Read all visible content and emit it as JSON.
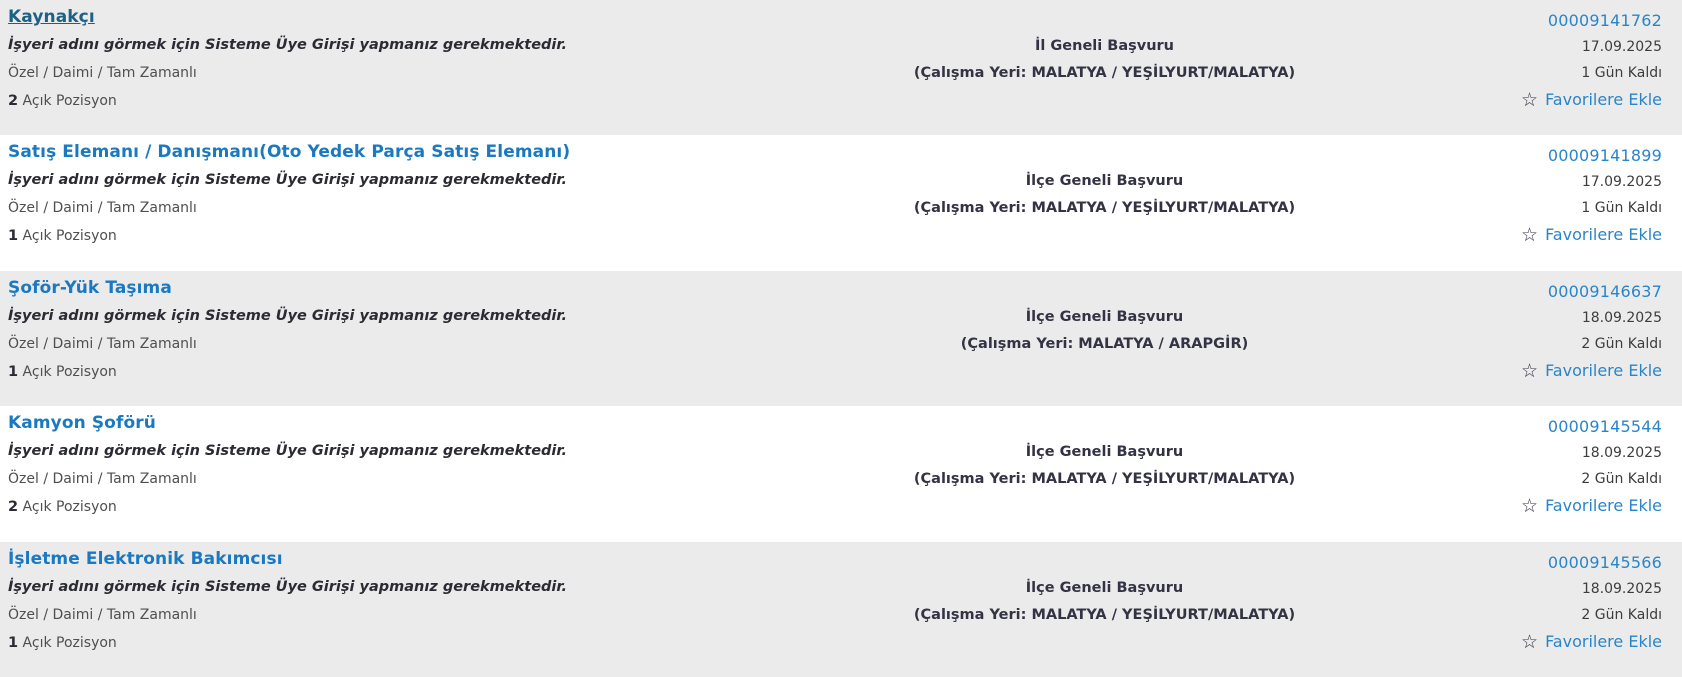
{
  "colors": {
    "row_alt_bg": "#ebebeb",
    "row_bg": "#ffffff",
    "link_blue": "#1b79c0",
    "visited_blue": "#1d6286",
    "id_blue": "#2a85c8",
    "dark_navy": "#2b2b34",
    "center_text": "#333344",
    "muted_text": "#4f4f4f",
    "date_text": "#3d3d3d",
    "star_color": "#333348"
  },
  "labels": {
    "login_notice": "İşyeri adını görmek için Sisteme Üye Girişi yapmanız gerekmektedir.",
    "job_type": "Özel / Daimi / Tam Zamanlı",
    "open_position_suffix": "Açık Pozisyon",
    "favorite_label": "Favorilere Ekle",
    "star_icon": "☆"
  },
  "jobs": [
    {
      "title": "Kaynakçı",
      "visited": true,
      "open_positions": "2",
      "application_scope": "İl Geneli Başvuru",
      "work_location": "(Çalışma Yeri: MALATYA / YEŞİLYURT/MALATYA)",
      "id": "00009141762",
      "date": "17.09.2025",
      "days_left": "1 Gün Kaldı"
    },
    {
      "title": "Satış Elemanı / Danışmanı(Oto Yedek Parça Satış Elemanı)",
      "visited": false,
      "open_positions": "1",
      "application_scope": "İlçe Geneli Başvuru",
      "work_location": "(Çalışma Yeri: MALATYA / YEŞİLYURT/MALATYA)",
      "id": "00009141899",
      "date": "17.09.2025",
      "days_left": "1 Gün Kaldı"
    },
    {
      "title": "Şoför-Yük Taşıma",
      "visited": false,
      "open_positions": "1",
      "application_scope": "İlçe Geneli Başvuru",
      "work_location": "(Çalışma Yeri: MALATYA / ARAPGİR)",
      "id": "00009146637",
      "date": "18.09.2025",
      "days_left": "2 Gün Kaldı"
    },
    {
      "title": "Kamyon Şoförü",
      "visited": false,
      "open_positions": "2",
      "application_scope": "İlçe Geneli Başvuru",
      "work_location": "(Çalışma Yeri: MALATYA / YEŞİLYURT/MALATYA)",
      "id": "00009145544",
      "date": "18.09.2025",
      "days_left": "2 Gün Kaldı"
    },
    {
      "title": "İşletme Elektronik Bakımcısı",
      "visited": false,
      "open_positions": "1",
      "application_scope": "İlçe Geneli Başvuru",
      "work_location": "(Çalışma Yeri: MALATYA / YEŞİLYURT/MALATYA)",
      "id": "00009145566",
      "date": "18.09.2025",
      "days_left": "2 Gün Kaldı"
    }
  ]
}
